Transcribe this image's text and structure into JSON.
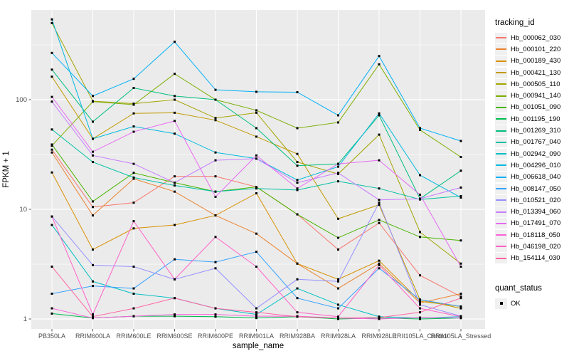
{
  "chart_data": {
    "type": "line",
    "title": "",
    "xlabel": "sample_name",
    "ylabel": "FPKM + 1",
    "y_scale": "log10",
    "y_ticks": [
      1,
      10,
      100
    ],
    "y_minor": [
      3.16,
      31.6,
      316
    ],
    "ylim": [
      0.8,
      660
    ],
    "grid": true,
    "legend_position": "right",
    "panel_bg": "#EBEBEB",
    "grid_color": "#FFFFFF",
    "tick_label_color": "#4D4D4D",
    "axis_title_color": "#000000",
    "point_color": "#000000",
    "categories": [
      "PB350LA",
      "RRIM600LA",
      "RRIM600LE",
      "RRIM600SE",
      "RRIM600PE",
      "RRIM901LA",
      "RRIM928BA",
      "RRIM928LA",
      "RRIM928LE",
      "RRII105LA_Control",
      "RRII105LA_Stressed"
    ],
    "series": [
      {
        "name": "Hb_000062_030",
        "color": "#F8766D",
        "values": [
          35,
          10.5,
          11.5,
          20,
          20,
          16,
          9,
          4.3,
          7.5,
          2.5,
          1.6
        ]
      },
      {
        "name": "Hb_000101_220",
        "color": "#EA8331",
        "values": [
          33,
          8.8,
          19,
          14.5,
          8.8,
          6,
          3.2,
          1.9,
          3.2,
          1.4,
          1.7
        ]
      },
      {
        "name": "Hb_000189_430",
        "color": "#D89000",
        "values": [
          21.7,
          4.3,
          6.7,
          7.2,
          8.8,
          14,
          3.2,
          2.3,
          3.4,
          1.45,
          1.3
        ]
      },
      {
        "name": "Hb_000421_130",
        "color": "#C09B00",
        "values": [
          162,
          44,
          75,
          76,
          65,
          46,
          32,
          8.2,
          11,
          1.5,
          1.25
        ]
      },
      {
        "name": "Hb_000505_110",
        "color": "#A3A500",
        "values": [
          500,
          97,
          92,
          100,
          68,
          76,
          27,
          21,
          48,
          6.2,
          3.2
        ]
      },
      {
        "name": "Hb_000941_140",
        "color": "#7CAE00",
        "values": [
          38,
          96,
          90,
          172,
          100,
          80,
          55,
          62,
          210,
          53,
          30
        ]
      },
      {
        "name": "Hb_001051_090",
        "color": "#49B500",
        "values": [
          39,
          11.8,
          21.5,
          17.5,
          14.5,
          16,
          9,
          5.5,
          8,
          5.6,
          5.2
        ]
      },
      {
        "name": "Hb_001195_190",
        "color": "#00BB4E",
        "values": [
          1.12,
          1.02,
          1.06,
          1.06,
          1.05,
          1.02,
          1.05,
          1.0,
          1.02,
          1.0,
          1.02
        ]
      },
      {
        "name": "Hb_001269_310",
        "color": "#00BF7D",
        "values": [
          188,
          63,
          128,
          108,
          100,
          55,
          25,
          26,
          72,
          12.5,
          22.5
        ]
      },
      {
        "name": "Hb_001767_040",
        "color": "#00C1A2",
        "values": [
          53.5,
          27,
          19.5,
          16.5,
          14.5,
          15.5,
          15,
          18,
          15.5,
          12.3,
          13.2
        ]
      },
      {
        "name": "Hb_002942_090",
        "color": "#00BFC4",
        "values": [
          7.2,
          2.2,
          1.7,
          1.55,
          1.25,
          1.1,
          1.9,
          1.35,
          1.05,
          1.02,
          1.05
        ]
      },
      {
        "name": "Hb_004296_010",
        "color": "#00BADE",
        "values": [
          540,
          44,
          57,
          49,
          33,
          29,
          18.5,
          24.5,
          75,
          20.5,
          12.8
        ]
      },
      {
        "name": "Hb_006618_040",
        "color": "#00B0F6",
        "values": [
          267,
          108,
          155,
          337,
          123,
          118,
          117,
          72,
          250,
          55,
          42
        ]
      },
      {
        "name": "Hb_008147_050",
        "color": "#35A2FF",
        "values": [
          1.7,
          2.0,
          1.9,
          3.5,
          3.3,
          4.1,
          1.55,
          1.25,
          2.9,
          1.5,
          1.3
        ]
      },
      {
        "name": "Hb_010521_020",
        "color": "#9590FF",
        "values": [
          8.6,
          3.1,
          3.0,
          2.3,
          2.9,
          1.25,
          2.3,
          2.2,
          11.5,
          1.35,
          1.06
        ]
      },
      {
        "name": "Hb_013394_060",
        "color": "#C77CFF",
        "values": [
          96,
          31,
          26,
          17.5,
          28,
          29,
          17.5,
          21.5,
          12.2,
          12.5,
          15.8
        ]
      },
      {
        "name": "Hb_017491_070",
        "color": "#E76BF3",
        "values": [
          106,
          33.5,
          51,
          64,
          13,
          31,
          15.5,
          26,
          28,
          13.6,
          3.0
        ]
      },
      {
        "name": "Hb_018118_050",
        "color": "#FA62DB",
        "values": [
          1.25,
          1.02,
          1.06,
          1.1,
          1.1,
          1.06,
          1.06,
          1.02,
          1.0,
          1.03,
          1.02
        ]
      },
      {
        "name": "Hb_046198_020",
        "color": "#FF61C9",
        "values": [
          8.6,
          1.1,
          7.8,
          2.3,
          5.6,
          3.0,
          1.15,
          1.05,
          3.1,
          1.25,
          1.05
        ]
      },
      {
        "name": "Hb_154114_030",
        "color": "#FF67A4",
        "values": [
          3.0,
          1.05,
          1.25,
          1.55,
          1.25,
          1.15,
          1.05,
          1.02,
          1.03,
          1.15,
          1.55
        ]
      }
    ],
    "legend": {
      "series_title": "tracking_id",
      "shape_title": "quant_status",
      "shape_items": [
        {
          "label": "OK",
          "marker": "black-square"
        }
      ]
    }
  }
}
